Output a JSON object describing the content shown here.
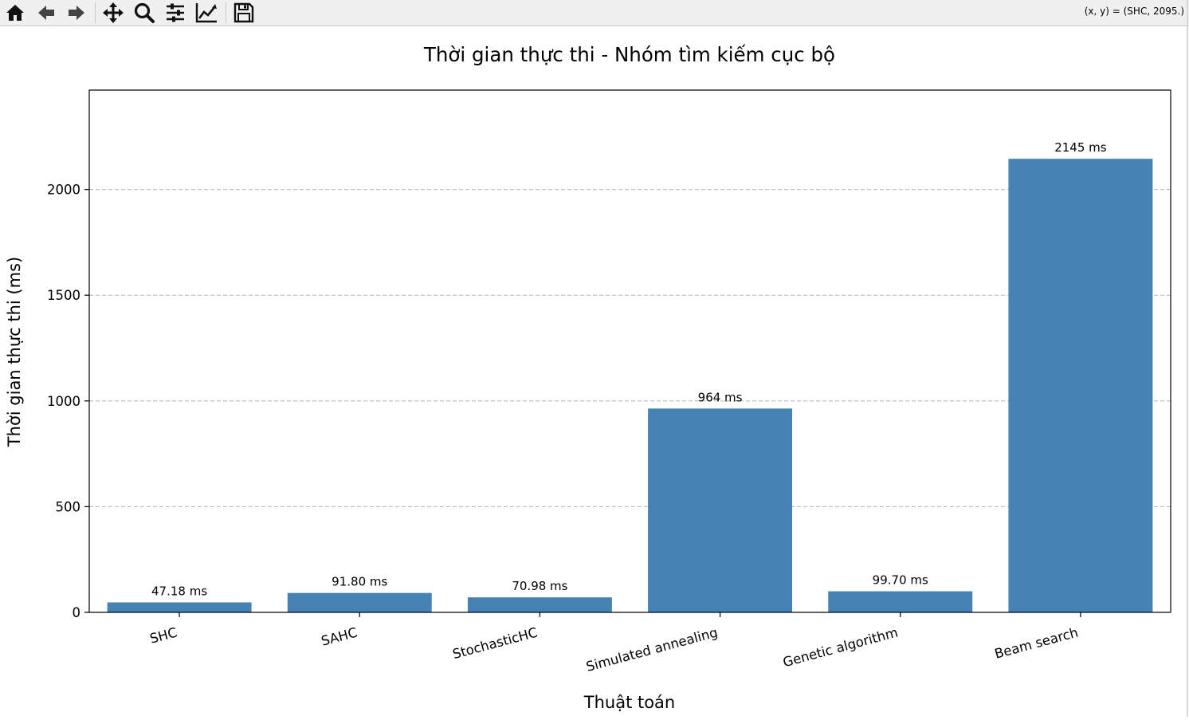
{
  "toolbar": {
    "tools": [
      {
        "name": "home-icon"
      },
      {
        "name": "back-arrow-icon"
      },
      {
        "name": "forward-arrow-icon"
      },
      {
        "name": "pan-icon"
      },
      {
        "name": "zoom-icon"
      },
      {
        "name": "configure-subplots-icon"
      },
      {
        "name": "edit-axis-icon"
      },
      {
        "name": "save-icon"
      }
    ],
    "coords_label": "(x, y) = (SHC, 2095.)"
  },
  "chart_data": {
    "type": "bar",
    "title": "Thời gian thực thi - Nhóm tìm kiếm cục bộ",
    "xlabel": "Thuật toán",
    "ylabel": "Thời gian thực thi (ms)",
    "categories": [
      "SHC",
      "SAHC",
      "StochasticHC",
      "Simulated annealing",
      "Genetic algorithm",
      "Beam search"
    ],
    "values": [
      47.18,
      91.8,
      70.98,
      964,
      99.7,
      2145
    ],
    "data_labels": [
      "47.18 ms",
      "91.80 ms",
      "70.98 ms",
      "964 ms",
      "99.70 ms",
      "2145 ms"
    ],
    "ylim": [
      0,
      2470
    ],
    "yticks": [
      0,
      500,
      1000,
      1500,
      2000
    ],
    "grid": "y-dashed",
    "bar_color": "#4682b4",
    "x_tick_rotation_deg": -15
  }
}
